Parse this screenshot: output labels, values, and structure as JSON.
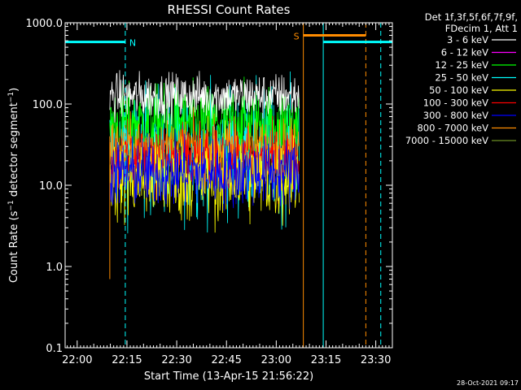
{
  "chart_data": {
    "type": "line",
    "title": "RHESSI Count Rates",
    "xlabel": "Start Time (13-Apr-15 21:56:22)",
    "ylabel": {
      "pre": "Count Rate (s",
      "sup": "−1",
      "post": " detector segment",
      "sup2": "−1",
      "end": ")"
    },
    "yscale": "log",
    "ylim": [
      0.1,
      1000.0
    ],
    "xlim": [
      "21:56:22",
      "23:35:00"
    ],
    "x_ticks": [
      "22:00",
      "22:15",
      "22:30",
      "22:45",
      "23:00",
      "23:15",
      "23:30"
    ],
    "y_ticks": [
      "0.1",
      "1.0",
      "10.0",
      "100.0",
      "1000.0"
    ],
    "data_interval": [
      "22:09:50",
      "23:07:00"
    ],
    "legend": {
      "header": [
        "Det 1f,3f,5f,6f,7f,9f,",
        "FDecim 1, Att 1"
      ],
      "placement": "right"
    },
    "series": [
      {
        "name": "3 - 6 keV",
        "color": "#ffffff",
        "approx_level": 125,
        "spread": 0.2
      },
      {
        "name": "6 - 12 keV",
        "color": "#ff00ff",
        "approx_level": 0,
        "spread": 0
      },
      {
        "name": "12 - 25 keV",
        "color": "#00ff00",
        "approx_level": 60,
        "spread": 0.32
      },
      {
        "name": "25 - 50 keV",
        "color": "#00ffff",
        "approx_level": 26,
        "spread": 0.55
      },
      {
        "name": "50 - 100 keV",
        "color": "#ffff00",
        "approx_level": 12,
        "spread": 0.38
      },
      {
        "name": "100 - 300 keV",
        "color": "#ff0000",
        "approx_level": 20,
        "spread": 0.28
      },
      {
        "name": "300 - 800 keV",
        "color": "#0000ff",
        "approx_level": 14,
        "spread": 0.3
      },
      {
        "name": "800 - 7000 keV",
        "color": "#ff8c00",
        "approx_level": 30,
        "spread": 0.24
      },
      {
        "name": "7000 - 15000 keV",
        "color": "#6b8e23",
        "approx_level": 0,
        "spread": 0
      }
    ],
    "spikes": [
      {
        "time": "22:09:50",
        "value": 0.7,
        "color": "#ff8c00"
      }
    ],
    "night_bars": [
      {
        "label": "N",
        "start": "21:56:22",
        "end": "22:14:30",
        "level": 580,
        "color": "#00ffff"
      },
      {
        "label": "",
        "start": "23:14:10",
        "end": "23:35:00",
        "level": 580,
        "color": "#00ffff"
      }
    ],
    "saa_bars": [
      {
        "label": "S",
        "start": "23:08:10",
        "end": "23:27:00",
        "level": 700,
        "color": "#ff8c00"
      }
    ],
    "vlines": [
      {
        "time": "21:56:22",
        "color": "#00ffff",
        "style": "solid"
      },
      {
        "time": "22:14:30",
        "color": "#00ffff",
        "style": "dashed"
      },
      {
        "time": "23:08:10",
        "color": "#ff8c00",
        "style": "solid"
      },
      {
        "time": "23:14:10",
        "color": "#00ffff",
        "style": "solid"
      },
      {
        "time": "23:27:00",
        "color": "#ff8c00",
        "style": "dashed"
      },
      {
        "time": "23:31:30",
        "color": "#00ffff",
        "style": "dashed"
      }
    ]
  },
  "footer": {
    "timestamp": "28-Oct-2021 09:17"
  }
}
